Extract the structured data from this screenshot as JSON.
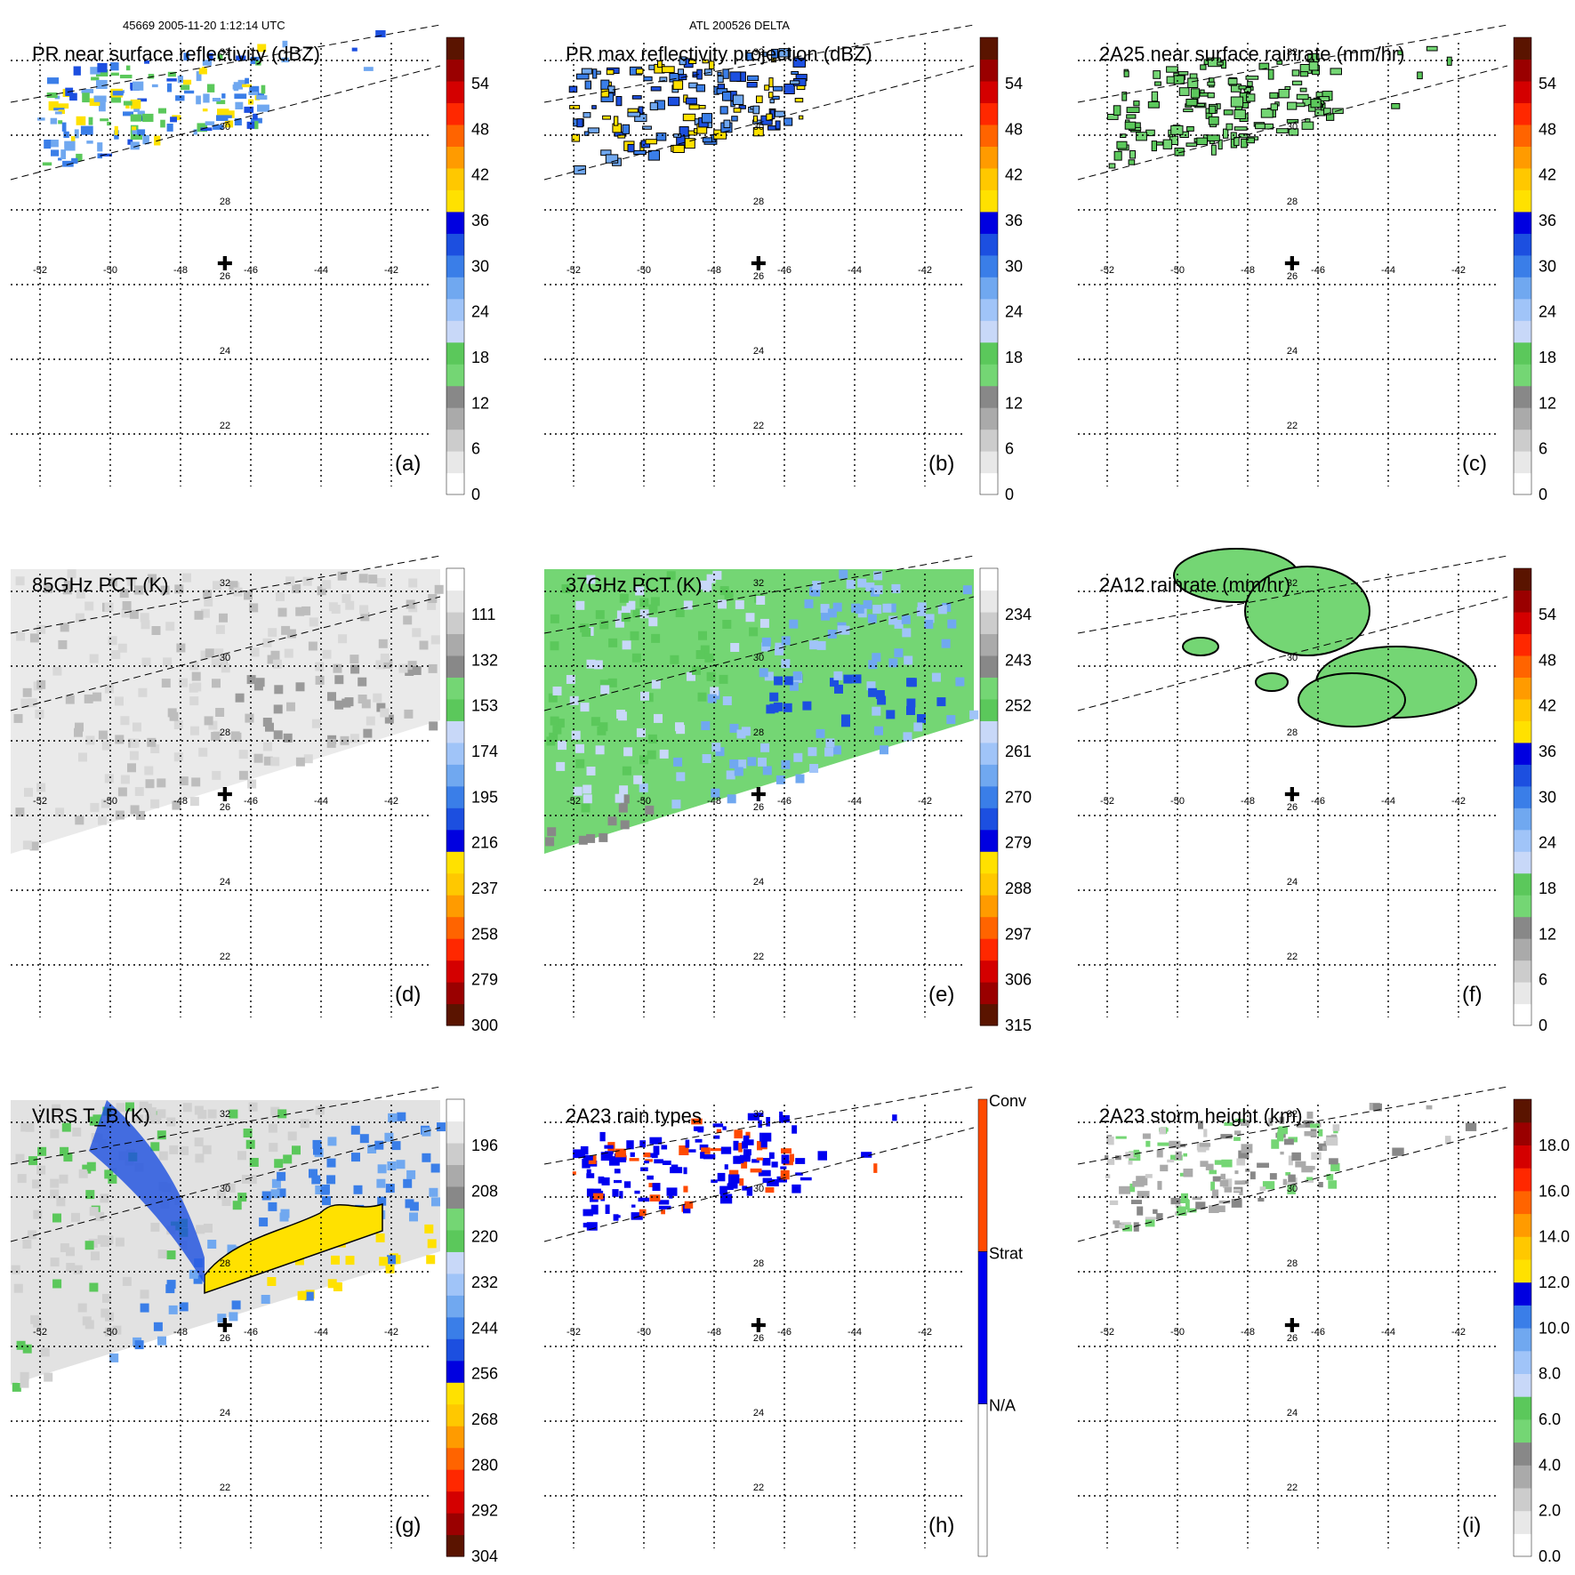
{
  "header": {
    "left": "45669 2005-11-20 1:12:14 UTC",
    "center": "ATL 200526 DELTA"
  },
  "palettes": {
    "rain": [
      "#ffffff",
      "#e8e8e8",
      "#cccccc",
      "#aaaaaa",
      "#888888",
      "#74d674",
      "#5bc85b",
      "#c8d8f8",
      "#a0c4f8",
      "#70a8f0",
      "#3a7ee8",
      "#1c4fe0",
      "#0000e0",
      "#ffe100",
      "#ffc800",
      "#ff9b00",
      "#ff6400",
      "#ff2800",
      "#d40000",
      "#9a0000",
      "#5a1400"
    ],
    "tb": [
      "#5a1400",
      "#9a0000",
      "#d40000",
      "#ff2800",
      "#ff6400",
      "#ff9b00",
      "#ffc800",
      "#ffe100",
      "#0000e0",
      "#1c4fe0",
      "#3a7ee8",
      "#70a8f0",
      "#a0c4f8",
      "#c8d8f8",
      "#5bc85b",
      "#74d674",
      "#888888",
      "#aaaaaa",
      "#cccccc",
      "#e8e8e8",
      "#ffffff"
    ],
    "raintype": [
      "#ffffff",
      "#0000f0",
      "#ff4a00"
    ],
    "height": [
      "#ffffff",
      "#e8e8e8",
      "#cccccc",
      "#aaaaaa",
      "#888888",
      "#74d674",
      "#5bc85b",
      "#c8d8f8",
      "#a0c4f8",
      "#70a8f0",
      "#3a7ee8",
      "#0000e0",
      "#ffe100",
      "#ffc800",
      "#ff9b00",
      "#ff6400",
      "#ff2800",
      "#d40000",
      "#9a0000",
      "#5a1400"
    ]
  },
  "axes": {
    "lon_ticks": [
      "-52",
      "-50",
      "-48",
      "-46",
      "-44",
      "-42"
    ],
    "lat_ticks": [
      "32",
      "30",
      "28",
      "26",
      "24",
      "22"
    ]
  },
  "chart_data": [
    {
      "type": "heatmap",
      "id": "a",
      "title": "PR near surface reflectivity (dBZ)",
      "label": "(a)",
      "colorbar_ticks": [
        "54",
        "48",
        "42",
        "36",
        "30",
        "24",
        "18",
        "12",
        "6",
        "0"
      ],
      "colorbar_range": [
        0,
        60
      ],
      "swath": "pr",
      "field": "pr_reflectivity",
      "marker": "storm center (-46.8, 27.0)"
    },
    {
      "type": "heatmap",
      "id": "b",
      "title": "PR max reflectivity projection (dBZ)",
      "label": "(b)",
      "colorbar_ticks": [
        "54",
        "48",
        "42",
        "36",
        "30",
        "24",
        "18",
        "12",
        "6",
        "0"
      ],
      "colorbar_range": [
        0,
        60
      ],
      "swath": "pr",
      "field": "pr_max_reflectivity",
      "marker": "storm center (-46.8, 27.0)"
    },
    {
      "type": "heatmap",
      "id": "c",
      "title": "2A25 near surface rainrate (mm/hr)",
      "label": "(c)",
      "colorbar_ticks": [
        "54",
        "48",
        "42",
        "36",
        "30",
        "24",
        "18",
        "12",
        "6",
        "0"
      ],
      "colorbar_range": [
        0,
        60
      ],
      "swath": "pr",
      "field": "2a25_rainrate",
      "marker": "storm center (-46.8, 27.0)"
    },
    {
      "type": "heatmap",
      "id": "d",
      "title": "85GHz PCT (K)",
      "label": "(d)",
      "colorbar_ticks": [
        "111",
        "132",
        "153",
        "174",
        "195",
        "216",
        "237",
        "258",
        "279",
        "300"
      ],
      "colorbar_range": [
        90,
        300
      ],
      "swath": "tmi",
      "field": "85ghz_pct",
      "marker": "storm center (-46.8, 27.0)"
    },
    {
      "type": "heatmap",
      "id": "e",
      "title": "37GHz PCT (K)",
      "label": "(e)",
      "colorbar_ticks": [
        "234",
        "243",
        "252",
        "261",
        "270",
        "279",
        "288",
        "297",
        "306",
        "315"
      ],
      "colorbar_range": [
        225,
        315
      ],
      "swath": "tmi",
      "field": "37ghz_pct",
      "marker": "storm center (-46.8, 27.0)"
    },
    {
      "type": "heatmap",
      "id": "f",
      "title": "2A12 rainrate (mm/hr)",
      "label": "(f)",
      "colorbar_ticks": [
        "54",
        "48",
        "42",
        "36",
        "30",
        "24",
        "18",
        "12",
        "6",
        "0"
      ],
      "colorbar_range": [
        0,
        60
      ],
      "swath": "tmi",
      "field": "2a12_rainrate",
      "marker": "storm center (-46.8, 27.0)"
    },
    {
      "type": "heatmap",
      "id": "g",
      "title": "VIRS T_B (K)",
      "label": "(g)",
      "colorbar_ticks": [
        "196",
        "208",
        "220",
        "232",
        "244",
        "256",
        "268",
        "280",
        "292",
        "304"
      ],
      "colorbar_range": [
        184,
        304
      ],
      "swath": "tmi",
      "field": "virs_tb",
      "marker": "storm center (-46.8, 27.0)"
    },
    {
      "type": "heatmap",
      "id": "h",
      "title": "2A23 rain types",
      "label": "(h)",
      "colorbar_ticks": [
        "Conv",
        "Strat",
        "N/A"
      ],
      "colorbar_categories": [
        "N/A",
        "Strat",
        "Conv"
      ],
      "swath": "pr",
      "field": "2a23_raintype",
      "marker": "storm center (-46.8, 27.0)"
    },
    {
      "type": "heatmap",
      "id": "i",
      "title": "2A23 storm height (km)",
      "label": "(i)",
      "colorbar_ticks": [
        "18.0",
        "16.0",
        "14.0",
        "12.0",
        "10.0",
        "8.0",
        "6.0",
        "4.0",
        "2.0",
        "0.0"
      ],
      "colorbar_range": [
        0,
        20
      ],
      "swath": "pr",
      "field": "2a23_height",
      "marker": "storm center (-46.8, 27.0)"
    }
  ]
}
